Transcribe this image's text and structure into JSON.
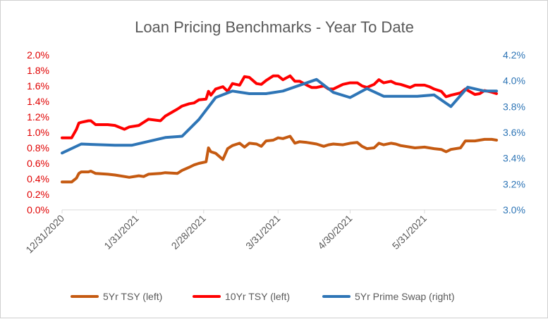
{
  "chart_data": {
    "type": "line",
    "title": "Loan Pricing Benchmarks - Year To Date",
    "xlabel": "",
    "ylabel": "",
    "x_ticks": [
      "12/31/2020",
      "1/31/2021",
      "2/28/2021",
      "3/31/2021",
      "4/30/2021",
      "5/31/2021"
    ],
    "x_domain": [
      "2020-12-31",
      "2021-06-30"
    ],
    "y_left": {
      "lim": [
        0,
        2.0
      ],
      "ticks": [
        "0.0%",
        "0.2%",
        "0.4%",
        "0.6%",
        "0.8%",
        "1.0%",
        "1.2%",
        "1.4%",
        "1.6%",
        "1.8%",
        "2.0%"
      ]
    },
    "y_right": {
      "lim": [
        3.0,
        4.2
      ],
      "ticks": [
        "3.0%",
        "3.2%",
        "3.4%",
        "3.6%",
        "3.8%",
        "4.0%",
        "4.2%"
      ]
    },
    "grid": false,
    "legend_position": "bottom",
    "series": [
      {
        "name": "5Yr TSY (left)",
        "axis": "left",
        "color": "#c55a11",
        "points": [
          [
            "2020-12-31",
            0.36
          ],
          [
            "2021-01-04",
            0.36
          ],
          [
            "2021-01-06",
            0.41
          ],
          [
            "2021-01-07",
            0.47
          ],
          [
            "2021-01-08",
            0.49
          ],
          [
            "2021-01-11",
            0.49
          ],
          [
            "2021-01-12",
            0.5
          ],
          [
            "2021-01-14",
            0.47
          ],
          [
            "2021-01-19",
            0.46
          ],
          [
            "2021-01-22",
            0.45
          ],
          [
            "2021-01-26",
            0.43
          ],
          [
            "2021-01-28",
            0.42
          ],
          [
            "2021-02-01",
            0.44
          ],
          [
            "2021-02-03",
            0.43
          ],
          [
            "2021-02-05",
            0.46
          ],
          [
            "2021-02-10",
            0.47
          ],
          [
            "2021-02-12",
            0.48
          ],
          [
            "2021-02-17",
            0.47
          ],
          [
            "2021-02-19",
            0.51
          ],
          [
            "2021-02-22",
            0.55
          ],
          [
            "2021-02-24",
            0.58
          ],
          [
            "2021-02-26",
            0.6
          ],
          [
            "2021-03-01",
            0.62
          ],
          [
            "2021-03-02",
            0.8
          ],
          [
            "2021-03-03",
            0.75
          ],
          [
            "2021-03-05",
            0.73
          ],
          [
            "2021-03-08",
            0.65
          ],
          [
            "2021-03-10",
            0.79
          ],
          [
            "2021-03-12",
            0.83
          ],
          [
            "2021-03-15",
            0.86
          ],
          [
            "2021-03-17",
            0.81
          ],
          [
            "2021-03-19",
            0.86
          ],
          [
            "2021-03-22",
            0.85
          ],
          [
            "2021-03-24",
            0.82
          ],
          [
            "2021-03-26",
            0.89
          ],
          [
            "2021-03-29",
            0.9
          ],
          [
            "2021-03-31",
            0.93
          ],
          [
            "2021-04-02",
            0.92
          ],
          [
            "2021-04-05",
            0.95
          ],
          [
            "2021-04-07",
            0.86
          ],
          [
            "2021-04-09",
            0.88
          ],
          [
            "2021-04-12",
            0.87
          ],
          [
            "2021-04-14",
            0.86
          ],
          [
            "2021-04-16",
            0.85
          ],
          [
            "2021-04-19",
            0.82
          ],
          [
            "2021-04-21",
            0.84
          ],
          [
            "2021-04-23",
            0.85
          ],
          [
            "2021-04-27",
            0.84
          ],
          [
            "2021-04-30",
            0.86
          ],
          [
            "2021-05-03",
            0.87
          ],
          [
            "2021-05-05",
            0.82
          ],
          [
            "2021-05-07",
            0.79
          ],
          [
            "2021-05-10",
            0.8
          ],
          [
            "2021-05-12",
            0.86
          ],
          [
            "2021-05-14",
            0.84
          ],
          [
            "2021-05-17",
            0.86
          ],
          [
            "2021-05-19",
            0.85
          ],
          [
            "2021-05-21",
            0.83
          ],
          [
            "2021-05-25",
            0.81
          ],
          [
            "2021-05-27",
            0.8
          ],
          [
            "2021-05-31",
            0.81
          ],
          [
            "2021-06-02",
            0.8
          ],
          [
            "2021-06-04",
            0.79
          ],
          [
            "2021-06-07",
            0.78
          ],
          [
            "2021-06-09",
            0.75
          ],
          [
            "2021-06-11",
            0.78
          ],
          [
            "2021-06-15",
            0.8
          ],
          [
            "2021-06-17",
            0.89
          ],
          [
            "2021-06-21",
            0.89
          ],
          [
            "2021-06-23",
            0.9
          ],
          [
            "2021-06-25",
            0.91
          ],
          [
            "2021-06-28",
            0.91
          ],
          [
            "2021-06-30",
            0.9
          ]
        ]
      },
      {
        "name": "10Yr TSY (left)",
        "axis": "left",
        "color": "#ff0000",
        "points": [
          [
            "2020-12-31",
            0.93
          ],
          [
            "2021-01-04",
            0.93
          ],
          [
            "2021-01-06",
            1.04
          ],
          [
            "2021-01-07",
            1.12
          ],
          [
            "2021-01-08",
            1.13
          ],
          [
            "2021-01-11",
            1.15
          ],
          [
            "2021-01-12",
            1.15
          ],
          [
            "2021-01-14",
            1.1
          ],
          [
            "2021-01-19",
            1.1
          ],
          [
            "2021-01-22",
            1.09
          ],
          [
            "2021-01-26",
            1.04
          ],
          [
            "2021-01-28",
            1.07
          ],
          [
            "2021-02-01",
            1.09
          ],
          [
            "2021-02-03",
            1.13
          ],
          [
            "2021-02-05",
            1.17
          ],
          [
            "2021-02-10",
            1.15
          ],
          [
            "2021-02-12",
            1.21
          ],
          [
            "2021-02-17",
            1.3
          ],
          [
            "2021-02-19",
            1.34
          ],
          [
            "2021-02-22",
            1.37
          ],
          [
            "2021-02-24",
            1.38
          ],
          [
            "2021-02-26",
            1.42
          ],
          [
            "2021-03-01",
            1.43
          ],
          [
            "2021-03-02",
            1.53
          ],
          [
            "2021-03-03",
            1.48
          ],
          [
            "2021-03-05",
            1.56
          ],
          [
            "2021-03-08",
            1.59
          ],
          [
            "2021-03-10",
            1.53
          ],
          [
            "2021-03-12",
            1.63
          ],
          [
            "2021-03-15",
            1.61
          ],
          [
            "2021-03-17",
            1.72
          ],
          [
            "2021-03-19",
            1.71
          ],
          [
            "2021-03-22",
            1.63
          ],
          [
            "2021-03-24",
            1.62
          ],
          [
            "2021-03-26",
            1.67
          ],
          [
            "2021-03-29",
            1.73
          ],
          [
            "2021-03-31",
            1.73
          ],
          [
            "2021-04-02",
            1.68
          ],
          [
            "2021-04-05",
            1.73
          ],
          [
            "2021-04-07",
            1.66
          ],
          [
            "2021-04-09",
            1.66
          ],
          [
            "2021-04-12",
            1.61
          ],
          [
            "2021-04-14",
            1.58
          ],
          [
            "2021-04-16",
            1.58
          ],
          [
            "2021-04-19",
            1.6
          ],
          [
            "2021-04-21",
            1.56
          ],
          [
            "2021-04-23",
            1.56
          ],
          [
            "2021-04-27",
            1.62
          ],
          [
            "2021-04-30",
            1.64
          ],
          [
            "2021-05-03",
            1.64
          ],
          [
            "2021-05-05",
            1.6
          ],
          [
            "2021-05-07",
            1.58
          ],
          [
            "2021-05-10",
            1.62
          ],
          [
            "2021-05-12",
            1.68
          ],
          [
            "2021-05-14",
            1.64
          ],
          [
            "2021-05-17",
            1.66
          ],
          [
            "2021-05-19",
            1.63
          ],
          [
            "2021-05-21",
            1.62
          ],
          [
            "2021-05-25",
            1.58
          ],
          [
            "2021-05-27",
            1.61
          ],
          [
            "2021-05-31",
            1.61
          ],
          [
            "2021-06-02",
            1.59
          ],
          [
            "2021-06-04",
            1.56
          ],
          [
            "2021-06-07",
            1.53
          ],
          [
            "2021-06-09",
            1.46
          ],
          [
            "2021-06-11",
            1.48
          ],
          [
            "2021-06-15",
            1.51
          ],
          [
            "2021-06-17",
            1.56
          ],
          [
            "2021-06-21",
            1.49
          ],
          [
            "2021-06-23",
            1.5
          ],
          [
            "2021-06-25",
            1.54
          ],
          [
            "2021-06-28",
            1.52
          ],
          [
            "2021-06-30",
            1.5
          ]
        ]
      },
      {
        "name": "5Yr Prime Swap (right)",
        "axis": "right",
        "color": "#2e75b6",
        "points": [
          [
            "2020-12-31",
            3.44
          ],
          [
            "2021-01-08",
            3.51
          ],
          [
            "2021-01-22",
            3.5
          ],
          [
            "2021-01-29",
            3.5
          ],
          [
            "2021-02-12",
            3.56
          ],
          [
            "2021-02-19",
            3.57
          ],
          [
            "2021-02-26",
            3.7
          ],
          [
            "2021-03-05",
            3.87
          ],
          [
            "2021-03-12",
            3.92
          ],
          [
            "2021-03-19",
            3.9
          ],
          [
            "2021-03-26",
            3.9
          ],
          [
            "2021-04-02",
            3.92
          ],
          [
            "2021-04-16",
            4.01
          ],
          [
            "2021-04-23",
            3.91
          ],
          [
            "2021-04-30",
            3.87
          ],
          [
            "2021-05-07",
            3.94
          ],
          [
            "2021-05-14",
            3.88
          ],
          [
            "2021-05-21",
            3.88
          ],
          [
            "2021-05-28",
            3.88
          ],
          [
            "2021-06-04",
            3.89
          ],
          [
            "2021-06-11",
            3.8
          ],
          [
            "2021-06-18",
            3.95
          ],
          [
            "2021-06-25",
            3.92
          ],
          [
            "2021-06-30",
            3.92
          ]
        ]
      }
    ]
  }
}
